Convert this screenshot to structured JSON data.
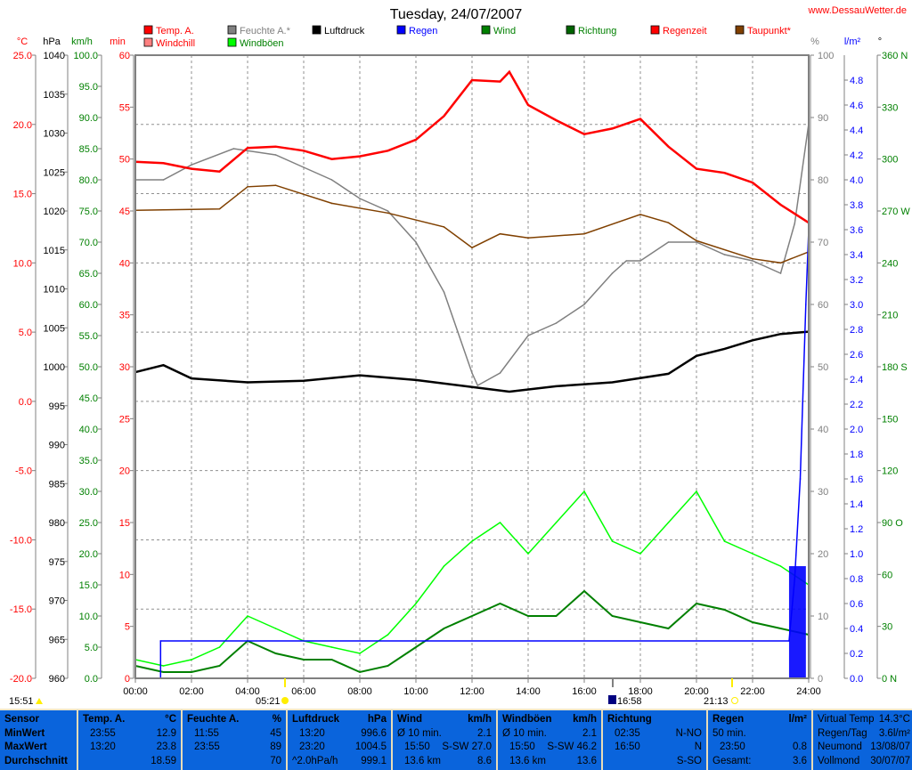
{
  "title": "Tuesday, 24/07/2007",
  "site": "www.DessauWetter.de",
  "axis_units": {
    "temp": "°C",
    "pressure": "hPa",
    "speed": "km/h",
    "minutes": "min",
    "humidity": "%",
    "rain": "l/m²",
    "direction": "°"
  },
  "legend": [
    {
      "label": "Temp. A.",
      "color": "#ff0000",
      "text_color": "#ff0000"
    },
    {
      "label": "Windchill",
      "color": "#ff8080",
      "text_color": "#ff0000"
    },
    {
      "label": "Feuchte A.*",
      "color": "#808080",
      "text_color": "#808080"
    },
    {
      "label": "Windböen",
      "color": "#00ff00",
      "text_color": "#008000"
    },
    {
      "label": "Luftdruck",
      "color": "#000000",
      "text_color": "#000000"
    },
    {
      "label": "Regen",
      "color": "#0000ff",
      "text_color": "#0000ff"
    },
    {
      "label": "Wind",
      "color": "#008000",
      "text_color": "#008000"
    },
    {
      "label": "Richtung",
      "color": "#006400",
      "text_color": "#008000"
    },
    {
      "label": "Regenzeit",
      "color": "#ff0000",
      "text_color": "#ff0000"
    },
    {
      "label": "Taupunkt*",
      "color": "#804000",
      "text_color": "#ff0000"
    }
  ],
  "chart_data": {
    "type": "line",
    "xlabel": "time",
    "x_range_hours": [
      0,
      24
    ],
    "x_ticks": [
      "00:00",
      "02:00",
      "04:00",
      "06:00",
      "08:00",
      "10:00",
      "12:00",
      "14:00",
      "16:00",
      "18:00",
      "20:00",
      "22:00",
      "24:00"
    ],
    "axes": {
      "temp": {
        "range": [
          -20,
          25
        ],
        "ticks": [
          "25.0",
          "20.0",
          "15.0",
          "10.0",
          "5.0",
          "0.0",
          "-5.0",
          "-10.0",
          "-15.0",
          "-20.0"
        ],
        "color": "#ff0000"
      },
      "pressure": {
        "range": [
          960,
          1040
        ],
        "ticks": [
          "1040",
          "1035",
          "1030",
          "1025",
          "1020",
          "1015",
          "1010",
          "1005",
          "1000",
          "995",
          "990",
          "985",
          "980",
          "975",
          "970",
          "965",
          "960"
        ],
        "color": "#000000"
      },
      "speed": {
        "range": [
          0,
          100
        ],
        "ticks": [
          "100.0",
          "95.0",
          "90.0",
          "85.0",
          "80.0",
          "75.0",
          "70.0",
          "65.0",
          "60.0",
          "55.0",
          "50.0",
          "45.0",
          "40.0",
          "35.0",
          "30.0",
          "25.0",
          "20.0",
          "15.0",
          "10.0",
          "5.0",
          "0.0"
        ],
        "color": "#008000"
      },
      "minutes": {
        "range": [
          0,
          60
        ],
        "ticks": [
          "60",
          "55",
          "50",
          "45",
          "40",
          "35",
          "30",
          "25",
          "20",
          "15",
          "10",
          "5",
          "0"
        ],
        "color": "#ff0000"
      },
      "humidity": {
        "range": [
          0,
          100
        ],
        "ticks": [
          "100",
          "90",
          "80",
          "70",
          "60",
          "50",
          "40",
          "30",
          "20",
          "10",
          "0"
        ],
        "color": "#808080"
      },
      "rain": {
        "range": [
          0,
          5
        ],
        "ticks": [
          "4.8",
          "4.6",
          "4.4",
          "4.2",
          "4.0",
          "3.8",
          "3.6",
          "3.4",
          "3.2",
          "3.0",
          "2.8",
          "2.6",
          "2.4",
          "2.2",
          "2.0",
          "1.8",
          "1.6",
          "1.4",
          "1.2",
          "1.0",
          "0.8",
          "0.6",
          "0.4",
          "0.2",
          "0.0"
        ],
        "color": "#0000ff"
      },
      "direction": {
        "range": [
          0,
          360
        ],
        "ticks": [
          "360 N",
          "330",
          "300",
          "270 W",
          "240",
          "210",
          "180 S",
          "150",
          "120",
          "90 O",
          "60",
          "30",
          "0 N"
        ],
        "color": "#008000"
      }
    },
    "series": [
      {
        "name": "Temp. A.",
        "axis": "temp",
        "color": "#ff0000",
        "x": [
          0,
          1,
          2,
          3,
          4,
          5,
          6,
          7,
          8,
          9,
          10,
          11,
          12,
          13,
          13.33,
          14,
          15,
          16,
          17,
          18,
          19,
          20,
          21,
          22,
          23,
          24
        ],
        "y": [
          17.3,
          17.2,
          16.8,
          16.6,
          18.3,
          18.4,
          18.1,
          17.5,
          17.7,
          18.1,
          18.9,
          20.6,
          23.2,
          23.1,
          23.8,
          21.4,
          20.3,
          19.3,
          19.7,
          20.4,
          18.4,
          16.8,
          16.5,
          15.8,
          14.2,
          12.9
        ]
      },
      {
        "name": "Feuchte A.*",
        "axis": "humidity",
        "color": "#808080",
        "x": [
          0,
          1,
          2,
          3.5,
          5,
          6,
          7,
          8,
          9,
          10,
          11,
          12,
          12.2,
          13,
          14,
          15,
          16,
          17,
          17.5,
          18,
          19,
          20,
          21,
          22,
          23,
          23.5,
          24
        ],
        "y": [
          80,
          80,
          82.4,
          85,
          84,
          82,
          80,
          77,
          75,
          70,
          62,
          49,
          47,
          49,
          55,
          57,
          60,
          65,
          67,
          67,
          70,
          70,
          68,
          67,
          65,
          73,
          89
        ]
      },
      {
        "name": "Luftdruck",
        "axis": "pressure",
        "color": "#000000",
        "x": [
          0,
          1,
          2,
          4,
          6,
          8,
          10,
          12,
          13.33,
          15,
          17,
          19,
          20,
          21,
          22,
          23,
          24
        ],
        "y": [
          999.3,
          1000.2,
          998.5,
          998,
          998.2,
          998.9,
          998.3,
          997.4,
          996.8,
          997.5,
          998,
          999.1,
          1001.4,
          1002.3,
          1003.4,
          1004.2,
          1004.5
        ]
      },
      {
        "name": "Taupunkt*",
        "axis": "temp",
        "color": "#804000",
        "x": [
          0,
          3,
          4,
          5,
          7,
          9,
          11,
          12,
          13,
          14,
          16,
          18,
          19,
          20,
          22,
          23,
          24
        ],
        "y": [
          13.8,
          13.9,
          15.5,
          15.6,
          14.3,
          13.6,
          12.6,
          11.1,
          12.1,
          11.8,
          12.1,
          13.5,
          12.9,
          11.6,
          10.3,
          10,
          10.8
        ]
      },
      {
        "name": "Windböen",
        "axis": "speed",
        "color": "#00ff00",
        "x": [
          0,
          1,
          2,
          3,
          4,
          5,
          6,
          7,
          8,
          9,
          10,
          11,
          12,
          13,
          14,
          15,
          16,
          17,
          18,
          19,
          20,
          21,
          22,
          23,
          24
        ],
        "y": [
          3,
          2,
          3,
          5,
          10,
          8,
          6,
          5,
          4,
          7,
          12,
          18,
          22,
          25,
          20,
          25,
          30,
          22,
          20,
          25,
          30,
          22,
          20,
          18,
          15
        ]
      },
      {
        "name": "Wind",
        "axis": "speed",
        "color": "#008000",
        "x": [
          0,
          1,
          2,
          3,
          4,
          5,
          6,
          7,
          8,
          9,
          10,
          11,
          12,
          13,
          14,
          15,
          16,
          17,
          18,
          19,
          20,
          21,
          22,
          23,
          24
        ],
        "y": [
          2,
          1,
          1,
          2,
          6,
          4,
          3,
          3,
          1,
          2,
          5,
          8,
          10,
          12,
          10,
          10,
          14,
          10,
          9,
          8,
          12,
          11,
          9,
          8,
          7
        ]
      },
      {
        "name": "Regen",
        "axis": "rain",
        "color": "#0000ff",
        "x": [
          0,
          0.9,
          0.9,
          23.3,
          23.5,
          23.7,
          23.9,
          24
        ],
        "y": [
          0,
          0,
          0.3,
          0.3,
          0.8,
          1.6,
          3.0,
          3.6
        ]
      }
    ]
  },
  "sun_moon": {
    "moonrise": "15:51",
    "sunrise": "05:21",
    "moonset": "16:58",
    "sunset": "21:13"
  },
  "stats": {
    "sensor": {
      "header": "Sensor",
      "rows": [
        "MinWert",
        "MaxWert",
        "Durchschnitt"
      ]
    },
    "temp": {
      "header": "Temp. A.",
      "unit": "°C",
      "min_time": "23:55",
      "min": "12.9",
      "max_time": "13:20",
      "max": "23.8",
      "avg": "18.59"
    },
    "hum": {
      "header": "Feuchte A.",
      "unit": "%",
      "min_time": "11:55",
      "min": "45",
      "max_time": "23:55",
      "max": "89",
      "avg": "70"
    },
    "press": {
      "header": "Luftdruck",
      "unit": "hPa",
      "min_time": "13:20",
      "min": "996.6",
      "max_time": "23:20",
      "max": "1004.5",
      "trend": "^2.0hPa/h",
      "avg": "999.1"
    },
    "wind": {
      "header": "Wind",
      "unit": "km/h",
      "l1": "Ø 10 min.",
      "v1": "2.1",
      "max_time": "15:50",
      "max": "S-SW 27.0",
      "dist": "13.6 km",
      "avg": "8.6"
    },
    "gust": {
      "header": "Windböen",
      "unit": "km/h",
      "l1": "Ø 10 min.",
      "v1": "2.1",
      "max_time": "15:50",
      "max": "S-SW 46.2",
      "dist": "13.6 km",
      "avg": "13.6"
    },
    "dir": {
      "header": "Richtung",
      "t1": "02:35",
      "d1": "N-NO",
      "t2": "16:50",
      "d2": "N",
      "d3": "S-SO"
    },
    "rain": {
      "header": "Regen",
      "unit": "l/m²",
      "l1": "50 min.",
      "max_time": "23:50",
      "max": "0.8",
      "total_label": "Gesamt:",
      "total": "3.6"
    },
    "extra": [
      {
        "k": "Virtual Temp",
        "v": "14.3°C"
      },
      {
        "k": "Regen/Tag",
        "v": "3.6l/m²"
      },
      {
        "k": "Neumond",
        "v": "13/08/07"
      },
      {
        "k": "Vollmond",
        "v": "30/07/07"
      }
    ]
  }
}
